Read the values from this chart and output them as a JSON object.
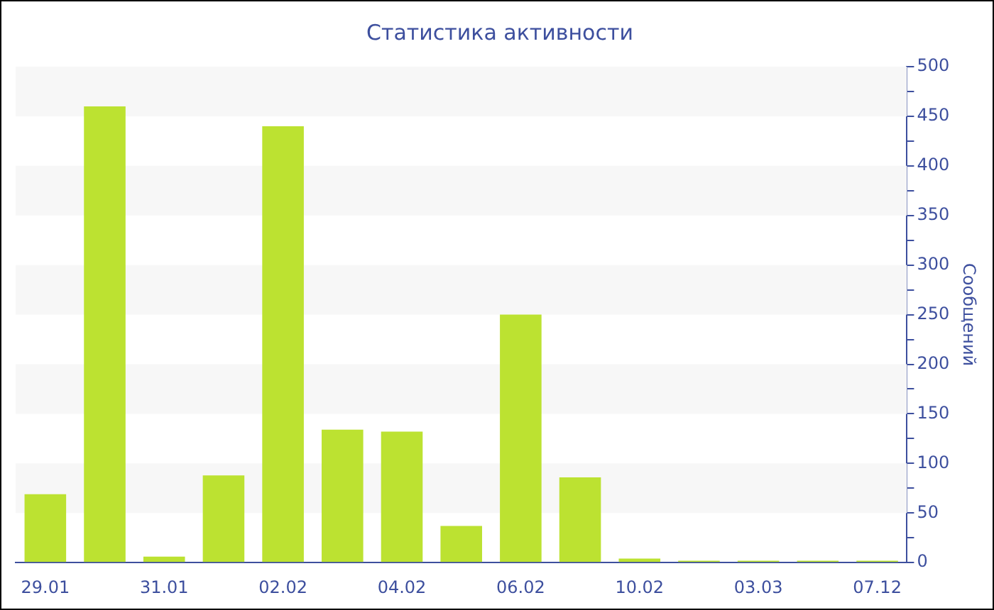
{
  "chart_data": {
    "type": "bar",
    "title": "Статистика активности",
    "ylabel": "Сообщений",
    "categories": [
      "29.01",
      null,
      "31.01",
      null,
      "02.02",
      null,
      "04.02",
      null,
      "06.02",
      null,
      "10.02",
      null,
      "03.03",
      null,
      "07.12"
    ],
    "values": [
      69,
      460,
      6,
      88,
      440,
      134,
      132,
      37,
      250,
      86,
      4,
      2,
      2,
      2,
      2
    ],
    "color": "#bce231",
    "ylim": [
      0,
      500
    ],
    "yticks": [
      0,
      {
        "value": 25,
        "label": null
      },
      50,
      {
        "value": 75,
        "label": null
      },
      100,
      {
        "value": 125,
        "label": null
      },
      150,
      {
        "value": 175,
        "label": null
      },
      200,
      {
        "value": 225,
        "label": null
      },
      250,
      {
        "value": 275,
        "label": null
      },
      300,
      {
        "value": 325,
        "label": null
      },
      350,
      {
        "value": 375,
        "label": null
      },
      400,
      {
        "value": 425,
        "label": null
      },
      450,
      {
        "value": 475,
        "label": null
      },
      500
    ],
    "legend": false
  }
}
